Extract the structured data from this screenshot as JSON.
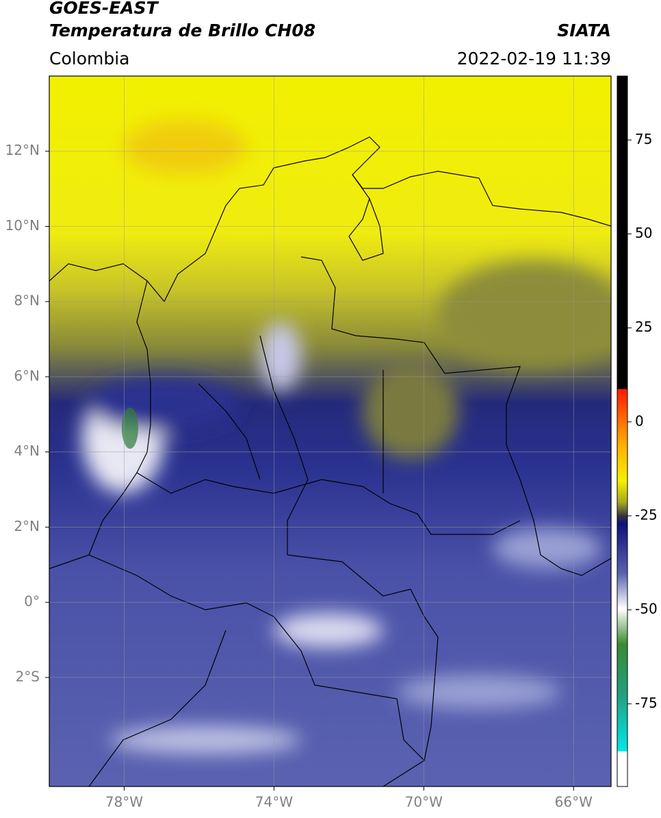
{
  "map": {
    "title": "GOES-EAST",
    "subtitle": "Temperatura de Brillo CH08",
    "source": "SIATA",
    "region": "Colombia",
    "timestamp": "2022-02-19 11:39",
    "lonlim": [
      -80,
      -65
    ],
    "latlim": [
      -4.9,
      14
    ],
    "lon_ticks": [
      {
        "value": -78,
        "label": "78°W"
      },
      {
        "value": -74,
        "label": "74°W"
      },
      {
        "value": -70,
        "label": "70°W"
      },
      {
        "value": -66,
        "label": "66°W"
      }
    ],
    "lat_ticks": [
      {
        "value": 12,
        "label": "12°N"
      },
      {
        "value": 10,
        "label": "10°N"
      },
      {
        "value": 8,
        "label": "8°N"
      },
      {
        "value": 6,
        "label": "6°N"
      },
      {
        "value": 4,
        "label": "4°N"
      },
      {
        "value": 2,
        "label": "2°N"
      },
      {
        "value": 0,
        "label": "0°"
      },
      {
        "value": -2,
        "label": "2°S"
      }
    ],
    "grid": true
  },
  "colorbar": {
    "lim": [
      -97,
      92
    ],
    "ticks": [
      75,
      50,
      25,
      0,
      -25,
      -50,
      -75
    ]
  }
}
